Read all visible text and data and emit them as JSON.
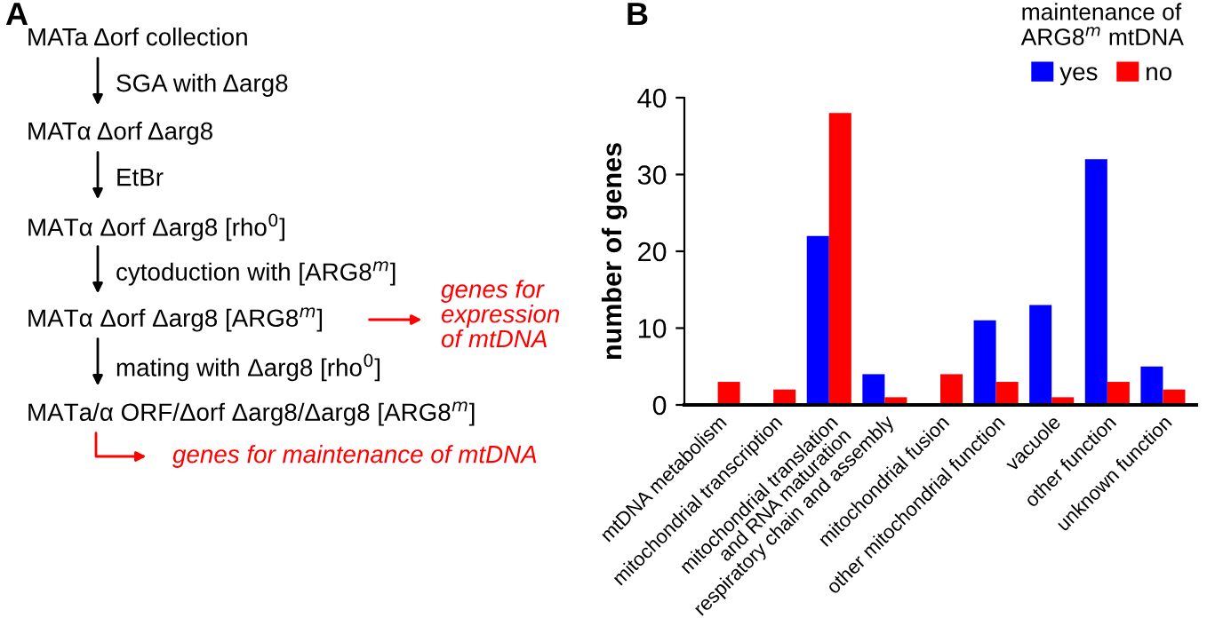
{
  "chart_data": [
    {
      "type": "other",
      "title": "A",
      "annotations": [
        "MATa Δorf collection",
        "SGA with Δarg8",
        "MATα Δorf Δarg8",
        "EtBr",
        "MATα Δorf Δarg8 [rho$^{0}$]",
        "cytoduction with [ARG8$^{m}$]",
        "MATα Δorf Δarg8 [ARG8$^{m}$]",
        "mating with Δarg8 [rho$^{0}$]",
        "MATa/α ORF/Δorf Δarg8/Δarg8 [ARG8$^{m}$]",
        "genes for\nexpression\nof mtDNA",
        "genes for maintenance of mtDNA"
      ]
    },
    {
      "type": "bar",
      "title": "B",
      "ylabel": "number of genes",
      "legend_title": "maintenance of\nARG8$^{m}$ mtDNA",
      "categories": [
        "mtDNA metabolism",
        "mitochondrial transcription",
        "mitochondrial translation\nand RNA maturation",
        "respiratory chain and assembly",
        "mitochondrial fusion",
        "other mitochondrial function",
        "vacuole",
        "other function",
        "unknown function"
      ],
      "series": [
        {
          "name": "yes",
          "color": "#0000ff",
          "values": [
            0,
            0,
            22,
            4,
            0,
            11,
            13,
            32,
            5
          ]
        },
        {
          "name": "no",
          "color": "#ff0000",
          "values": [
            3,
            2,
            38,
            1,
            4,
            3,
            1,
            3,
            2
          ]
        }
      ],
      "ylim": [
        0,
        40
      ],
      "yticks": [
        0,
        10,
        20,
        30,
        40
      ],
      "grid": false,
      "legend": "top right"
    }
  ]
}
